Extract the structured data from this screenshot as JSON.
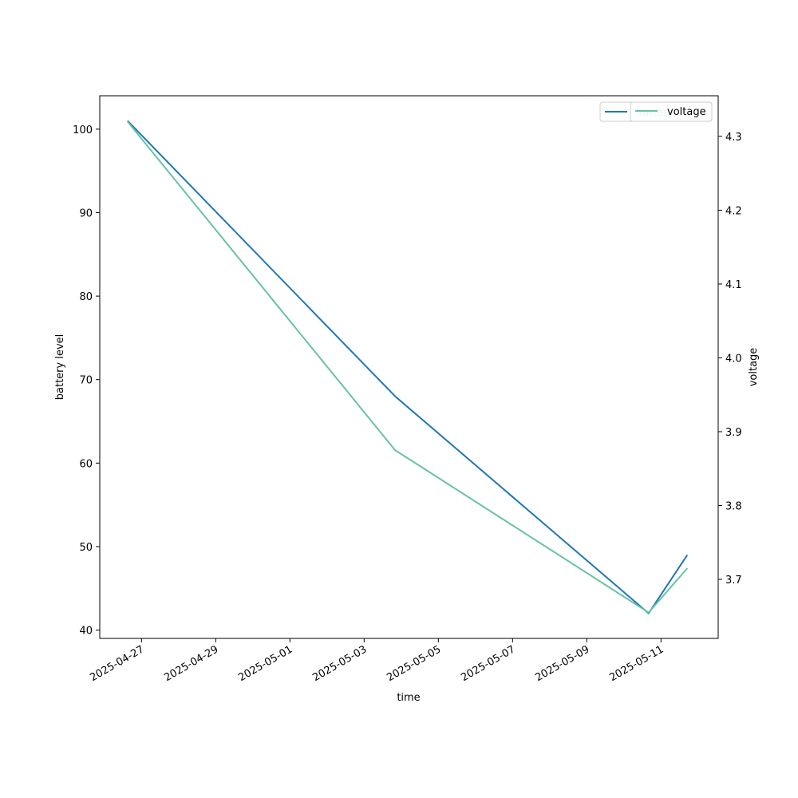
{
  "chart_data": {
    "type": "line",
    "xlabel": "time",
    "ylabel_left": "battery level",
    "ylabel_right": "voltage",
    "x_ticks": [
      "2025-04-27",
      "2025-04-29",
      "2025-05-01",
      "2025-05-03",
      "2025-05-05",
      "2025-05-07",
      "2025-05-09",
      "2025-05-11"
    ],
    "xlim": [
      "2025-04-25T21:00",
      "2025-05-12T13:00"
    ],
    "y_left_ticks": [
      40,
      50,
      60,
      70,
      80,
      90,
      100
    ],
    "y_left_lim": [
      39,
      104
    ],
    "y_right_ticks": [
      3.7,
      3.8,
      3.9,
      4.0,
      4.1,
      4.2,
      4.3
    ],
    "y_right_lim": [
      3.62,
      4.355
    ],
    "series": [
      {
        "name": "battery",
        "axis": "left",
        "color": "#1f77b4",
        "x": [
          "2025-04-26T15:00",
          "2025-05-03T20:00",
          "2025-05-10T16:00",
          "2025-05-11T17:00"
        ],
        "y": [
          101,
          68,
          42,
          49
        ]
      },
      {
        "name": "voltage",
        "axis": "right",
        "color": "#66c2a5",
        "x": [
          "2025-04-26T15:00",
          "2025-05-03T20:00",
          "2025-05-10T16:00",
          "2025-05-11T17:00"
        ],
        "y": [
          4.32,
          3.875,
          3.655,
          3.715
        ]
      }
    ],
    "legend_placement": "upper-right",
    "grid": false
  }
}
